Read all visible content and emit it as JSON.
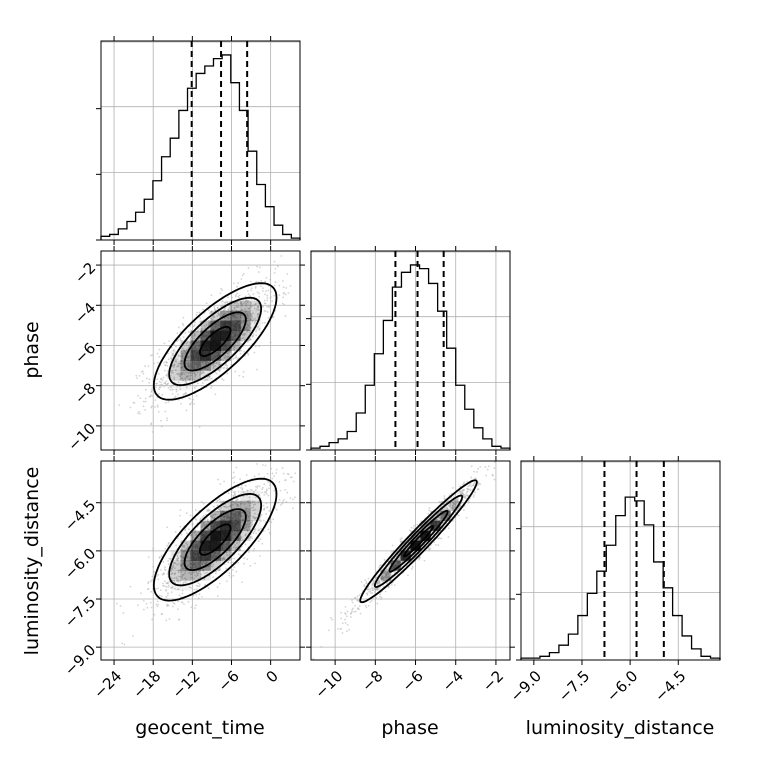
{
  "chart_data": {
    "type": "corner",
    "parameters": [
      "geocent_time",
      "phase",
      "luminosity_distance"
    ],
    "labels": {
      "geocent_time": "geocent_time",
      "phase": "phase",
      "luminosity_distance": "luminosity_distance"
    },
    "ranges": {
      "geocent_time": [
        -26,
        4.5
      ],
      "phase": [
        -11.2,
        -1.3
      ],
      "luminosity_distance": [
        -9.4,
        -3.2
      ]
    },
    "ticks": {
      "geocent_time": [
        -24,
        -18,
        -12,
        -6,
        0
      ],
      "phase": [
        -10,
        -8,
        -6,
        -4,
        -2
      ],
      "luminosity_distance": [
        -9.0,
        -7.5,
        -6.0,
        -4.5
      ]
    },
    "tick_labels": {
      "geocent_time": [
        "−24",
        "−18",
        "−12",
        "−6",
        "0"
      ],
      "phase": [
        "−10",
        "−8",
        "−6",
        "−4",
        "−2"
      ],
      "luminosity_distance": [
        "−9.0",
        "−7.5",
        "−6.0",
        "−4.5"
      ]
    },
    "quantiles": {
      "geocent_time": [
        -12.1,
        -7.6,
        -3.6
      ],
      "phase": [
        -7.0,
        -5.9,
        -4.6
      ],
      "luminosity_distance": [
        -6.8,
        -5.8,
        -4.95
      ]
    },
    "histograms": {
      "geocent_time": [
        0.02,
        0.03,
        0.06,
        0.1,
        0.15,
        0.22,
        0.32,
        0.45,
        0.55,
        0.7,
        0.82,
        0.9,
        0.94,
        0.98,
        1.0,
        0.85,
        0.7,
        0.48,
        0.3,
        0.18,
        0.08,
        0.03,
        0.01
      ],
      "phase": [
        0.01,
        0.02,
        0.04,
        0.06,
        0.1,
        0.2,
        0.35,
        0.52,
        0.7,
        0.88,
        0.96,
        1.0,
        0.98,
        0.9,
        0.75,
        0.55,
        0.35,
        0.22,
        0.12,
        0.06,
        0.02,
        0.01
      ],
      "luminosity_distance": [
        0.01,
        0.01,
        0.02,
        0.04,
        0.08,
        0.14,
        0.24,
        0.36,
        0.48,
        0.62,
        0.78,
        0.88,
        0.86,
        0.73,
        0.53,
        0.39,
        0.24,
        0.13,
        0.06,
        0.02,
        0.01
      ]
    },
    "correlations": {
      "phase__geocent_time": {
        "center": [
          -8.5,
          -5.8
        ],
        "sigma": [
          4.7,
          1.45
        ],
        "rho": 0.75
      },
      "luminosity_distance__geocent_time": {
        "center": [
          -8.5,
          -5.65
        ],
        "sigma": [
          4.7,
          0.95
        ],
        "rho": 0.75
      },
      "luminosity_distance__phase": {
        "center": [
          -5.85,
          -5.7
        ],
        "sigma": [
          1.45,
          0.95
        ],
        "rho": 0.97
      }
    },
    "contour_levels_sigma": [
      0.5,
      1.0,
      1.5,
      2.0
    ],
    "grid": true,
    "colors": {
      "histogram": "#000000",
      "scatter": "#b0b0b0",
      "density": "#000000",
      "quantile_line": "#000000",
      "grid": "#b0b0b0"
    }
  }
}
